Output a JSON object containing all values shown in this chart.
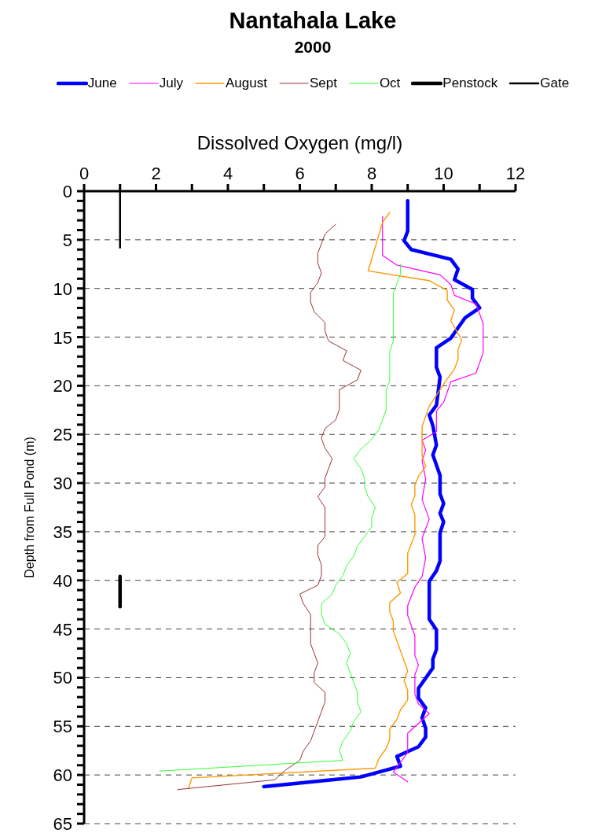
{
  "chart_data": {
    "type": "line",
    "title": "Nantahala Lake",
    "subtitle": "2000",
    "xlabel": "Dissolved Oxygen (mg/l)",
    "ylabel": "Depth from Full Pond (m)",
    "xlim": [
      0,
      12
    ],
    "xticks": [
      0,
      {
        "value": 1,
        "label": null
      },
      2,
      {
        "value": 3,
        "label": null
      },
      4,
      {
        "value": 5,
        "label": null
      },
      6,
      {
        "value": 7,
        "label": null
      },
      8,
      {
        "value": 9,
        "label": null
      },
      10,
      {
        "value": 11,
        "label": null
      },
      12
    ],
    "ylim": [
      65,
      0
    ],
    "yticks": [
      0,
      {
        "value": 1,
        "label": null
      },
      {
        "value": 2,
        "label": null
      },
      {
        "value": 3,
        "label": null
      },
      {
        "value": 4,
        "label": null
      },
      5,
      {
        "value": 6,
        "label": null
      },
      {
        "value": 7,
        "label": null
      },
      {
        "value": 8,
        "label": null
      },
      {
        "value": 9,
        "label": null
      },
      10,
      {
        "value": 11,
        "label": null
      },
      {
        "value": 12,
        "label": null
      },
      {
        "value": 13,
        "label": null
      },
      {
        "value": 14,
        "label": null
      },
      15,
      {
        "value": 16,
        "label": null
      },
      {
        "value": 17,
        "label": null
      },
      {
        "value": 18,
        "label": null
      },
      {
        "value": 19,
        "label": null
      },
      20,
      {
        "value": 21,
        "label": null
      },
      {
        "value": 22,
        "label": null
      },
      {
        "value": 23,
        "label": null
      },
      {
        "value": 24,
        "label": null
      },
      25,
      {
        "value": 26,
        "label": null
      },
      {
        "value": 27,
        "label": null
      },
      {
        "value": 28,
        "label": null
      },
      {
        "value": 29,
        "label": null
      },
      30,
      {
        "value": 31,
        "label": null
      },
      {
        "value": 32,
        "label": null
      },
      {
        "value": 33,
        "label": null
      },
      {
        "value": 34,
        "label": null
      },
      35,
      {
        "value": 36,
        "label": null
      },
      {
        "value": 37,
        "label": null
      },
      {
        "value": 38,
        "label": null
      },
      {
        "value": 39,
        "label": null
      },
      40,
      {
        "value": 41,
        "label": null
      },
      {
        "value": 42,
        "label": null
      },
      {
        "value": 43,
        "label": null
      },
      {
        "value": 44,
        "label": null
      },
      45,
      {
        "value": 46,
        "label": null
      },
      {
        "value": 47,
        "label": null
      },
      {
        "value": 48,
        "label": null
      },
      {
        "value": 49,
        "label": null
      },
      50,
      {
        "value": 51,
        "label": null
      },
      {
        "value": 52,
        "label": null
      },
      {
        "value": 53,
        "label": null
      },
      {
        "value": 54,
        "label": null
      },
      55,
      {
        "value": 56,
        "label": null
      },
      {
        "value": 57,
        "label": null
      },
      {
        "value": 58,
        "label": null
      },
      {
        "value": 59,
        "label": null
      },
      60,
      {
        "value": 61,
        "label": null
      },
      {
        "value": 62,
        "label": null
      },
      {
        "value": 63,
        "label": null
      },
      {
        "value": 64,
        "label": null
      },
      65
    ],
    "grid": "y",
    "legend": "top",
    "marker": "none",
    "line_style": "solid",
    "series": [
      {
        "name": "June",
        "color": "#0000ff",
        "x": [
          9.0,
          9.0,
          9.0,
          8.9,
          9.1,
          10.2,
          10.4,
          10.3,
          10.8,
          10.8,
          11.0,
          10.6,
          10.2,
          9.8,
          9.8,
          9.9,
          9.8,
          9.6,
          9.7,
          9.8,
          9.7,
          9.9,
          9.9,
          10.0,
          9.9,
          10.0,
          9.9,
          9.9,
          9.8,
          9.6,
          9.6,
          9.8,
          9.8,
          9.7,
          9.7,
          9.3,
          9.3,
          9.5,
          9.4,
          9.5,
          9.5,
          9.3,
          8.7,
          8.8,
          7.7,
          6.9,
          5.0
        ],
        "values": [
          1.0,
          3.0,
          4.1,
          5.1,
          6.0,
          7.0,
          8.0,
          9.1,
          10.1,
          11.0,
          12.0,
          13.0,
          15.1,
          16.1,
          18.1,
          19.1,
          22.0,
          23.0,
          24.1,
          26.1,
          27.1,
          29.2,
          31.1,
          32.1,
          33.1,
          34.0,
          35.1,
          38.0,
          39.0,
          40.1,
          44.0,
          45.1,
          47.1,
          48.1,
          49.0,
          51.1,
          52.1,
          53.1,
          54.1,
          55.2,
          56.1,
          57.1,
          58.1,
          59.1,
          60.2,
          60.5,
          61.2
        ]
      },
      {
        "name": "July",
        "color": "#ff00ff",
        "x": [
          8.3,
          8.3,
          8.7,
          9.9,
          10.2,
          10.3,
          10.9,
          11.1,
          11.1,
          10.9,
          10.2,
          10.0,
          9.8,
          9.8,
          9.4,
          9.5,
          9.4,
          9.5,
          9.4,
          9.6,
          9.4,
          9.5,
          9.4,
          9.2,
          9.0,
          9.0,
          9.2,
          9.2,
          9.3,
          9.2,
          9.2,
          9.3,
          9.6,
          9.0,
          9.0,
          8.6,
          9.0
        ],
        "values": [
          2.6,
          6.6,
          7.6,
          8.6,
          9.6,
          10.7,
          11.6,
          13.6,
          16.6,
          18.7,
          19.6,
          21.7,
          22.6,
          24.7,
          25.6,
          26.6,
          27.7,
          29.6,
          31.7,
          33.7,
          35.7,
          37.7,
          39.6,
          40.7,
          42.6,
          43.6,
          45.7,
          47.7,
          48.7,
          49.7,
          51.7,
          52.7,
          53.7,
          55.7,
          57.7,
          59.7,
          60.7
        ]
      },
      {
        "name": "August",
        "color": "#ff9900",
        "x": [
          8.5,
          8.3,
          7.9,
          9.6,
          10.1,
          10.1,
          10.3,
          10.2,
          10.5,
          10.4,
          10.4,
          10.3,
          10.1,
          9.9,
          9.6,
          9.4,
          9.4,
          9.5,
          9.3,
          9.2,
          9.2,
          9.1,
          9.2,
          9.2,
          9.0,
          9.0,
          8.7,
          8.8,
          8.5,
          8.5,
          8.6,
          8.6,
          9.0,
          8.9,
          9.0,
          9.0,
          8.8,
          8.7,
          8.5,
          8.5,
          8.4,
          8.2,
          8.1,
          3.0,
          2.9
        ],
        "values": [
          2.2,
          3.2,
          8.2,
          9.2,
          10.2,
          11.2,
          12.2,
          13.3,
          15.3,
          16.3,
          17.3,
          18.3,
          19.3,
          20.4,
          22.1,
          24.2,
          27.2,
          28.3,
          29.3,
          30.2,
          31.3,
          32.2,
          33.3,
          35.3,
          37.2,
          39.3,
          40.2,
          41.3,
          42.3,
          43.2,
          44.2,
          45.2,
          49.3,
          50.3,
          51.3,
          52.3,
          53.3,
          54.3,
          55.3,
          56.3,
          57.3,
          58.3,
          59.3,
          60.3,
          61.4
        ]
      },
      {
        "name": "Sept",
        "color": "#993333",
        "x": [
          7.0,
          6.7,
          6.5,
          6.5,
          6.6,
          6.5,
          6.3,
          6.3,
          6.4,
          6.7,
          6.7,
          6.8,
          7.3,
          7.2,
          7.7,
          7.6,
          7.1,
          7.1,
          7.0,
          6.7,
          6.6,
          6.7,
          6.9,
          6.7,
          6.7,
          6.5,
          6.7,
          6.7,
          6.5,
          6.5,
          6.6,
          6.6,
          6.5,
          6.0,
          6.1,
          6.3,
          6.3,
          6.5,
          6.4,
          6.4,
          6.7,
          6.7,
          6.5,
          6.3,
          6.1,
          6.0,
          5.6,
          5.3,
          2.6
        ],
        "values": [
          3.4,
          4.4,
          6.4,
          7.4,
          8.4,
          9.4,
          10.4,
          11.4,
          12.4,
          13.5,
          14.4,
          15.4,
          16.4,
          17.4,
          18.4,
          19.4,
          20.4,
          22.4,
          23.5,
          24.4,
          25.4,
          26.4,
          27.5,
          29.5,
          30.4,
          31.4,
          32.5,
          35.5,
          36.4,
          37.4,
          38.4,
          39.5,
          40.5,
          41.4,
          42.4,
          43.5,
          46.5,
          48.5,
          49.5,
          50.5,
          51.5,
          52.5,
          54.5,
          56.5,
          57.5,
          58.5,
          59.5,
          60.5,
          61.5
        ]
      },
      {
        "name": "Oct",
        "color": "#33ff33",
        "x": [
          8.8,
          8.8,
          8.6,
          8.6,
          8.5,
          8.5,
          8.4,
          8.4,
          8.2,
          8.0,
          7.7,
          7.5,
          7.7,
          7.8,
          7.8,
          7.9,
          8.1,
          8.0,
          8.0,
          7.8,
          7.6,
          7.5,
          7.3,
          7.2,
          7.0,
          6.9,
          6.6,
          6.6,
          6.7,
          7.1,
          7.3,
          7.4,
          7.3,
          7.5,
          7.6,
          7.6,
          7.7,
          7.5,
          7.4,
          7.2,
          7.1,
          7.2,
          2.1
        ],
        "values": [
          7.5,
          8.5,
          10.5,
          15.4,
          16.5,
          19.5,
          20.5,
          22.5,
          24.5,
          25.5,
          26.5,
          27.5,
          28.5,
          29.5,
          30.4,
          31.4,
          32.5,
          33.5,
          34.5,
          35.5,
          36.5,
          37.5,
          38.5,
          39.5,
          40.5,
          41.4,
          42.4,
          43.5,
          44.5,
          45.5,
          46.5,
          47.5,
          48.5,
          50.5,
          51.5,
          52.5,
          53.5,
          54.5,
          55.5,
          56.5,
          57.5,
          58.5,
          59.6
        ]
      },
      {
        "name": "Penstock",
        "color": "#000000",
        "x": [
          1,
          1
        ],
        "values": [
          39.6,
          42.7
        ]
      },
      {
        "name": "Gate",
        "color": "#000000",
        "x": [
          1,
          1
        ],
        "values": [
          0,
          5.8
        ]
      }
    ]
  }
}
